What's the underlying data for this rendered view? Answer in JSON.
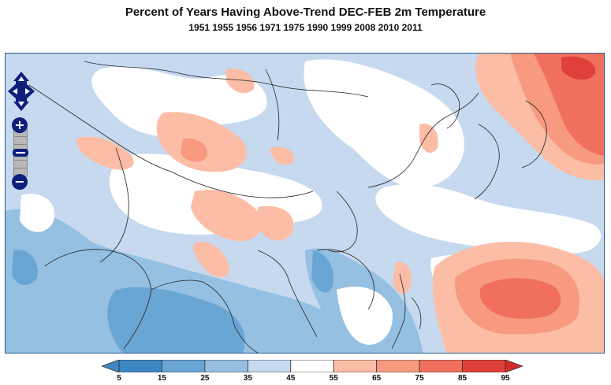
{
  "title": "Percent of Years Having Above-Trend DEC-FEB 2m Temperature",
  "subtitle": "1951 1955 1956 1971 1975 1990 1999 2008 2010 2011",
  "map": {
    "region": "East and South Asia",
    "colorbar": {
      "ticks": [
        "5",
        "15",
        "25",
        "35",
        "45",
        "55",
        "65",
        "75",
        "85",
        "95"
      ],
      "colors": [
        "#3e86c2",
        "#6aa6d4",
        "#95c0e2",
        "#c6d9ee",
        "#ffffff",
        "#fcbda6",
        "#f79a80",
        "#f0705d",
        "#e0403a"
      ],
      "low_extend_color": "#3e86c2",
      "high_extend_color": "#d42a2a"
    }
  },
  "controls": {
    "pan_icon": "pan-arrows-icon",
    "zoom_in_label": "+",
    "zoom_out_label": "−"
  }
}
